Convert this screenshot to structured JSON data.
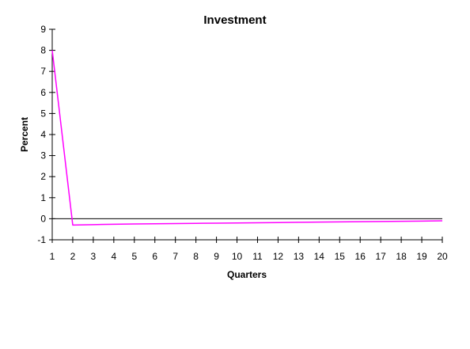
{
  "chart_data": {
    "type": "line",
    "title": "Investment",
    "xlabel": "Quarters",
    "ylabel": "Percent",
    "x": [
      1,
      2,
      3,
      4,
      5,
      6,
      7,
      8,
      9,
      10,
      11,
      12,
      13,
      14,
      15,
      16,
      17,
      18,
      19,
      20
    ],
    "series": [
      {
        "values": [
          8.0,
          -0.3,
          -0.28,
          -0.26,
          -0.25,
          -0.24,
          -0.23,
          -0.22,
          -0.21,
          -0.2,
          -0.19,
          -0.18,
          -0.17,
          -0.16,
          -0.15,
          -0.14,
          -0.13,
          -0.12,
          -0.11,
          -0.1
        ],
        "color": "#ff00ff"
      }
    ],
    "xlim": [
      1,
      20
    ],
    "ylim": [
      -1,
      9
    ],
    "yticks": [
      -1,
      0,
      1,
      2,
      3,
      4,
      5,
      6,
      7,
      8,
      9
    ],
    "xticks": [
      1,
      2,
      3,
      4,
      5,
      6,
      7,
      8,
      9,
      10,
      11,
      12,
      13,
      14,
      15,
      16,
      17,
      18,
      19,
      20
    ],
    "zero_line": true,
    "grid": false,
    "legend": "none"
  }
}
